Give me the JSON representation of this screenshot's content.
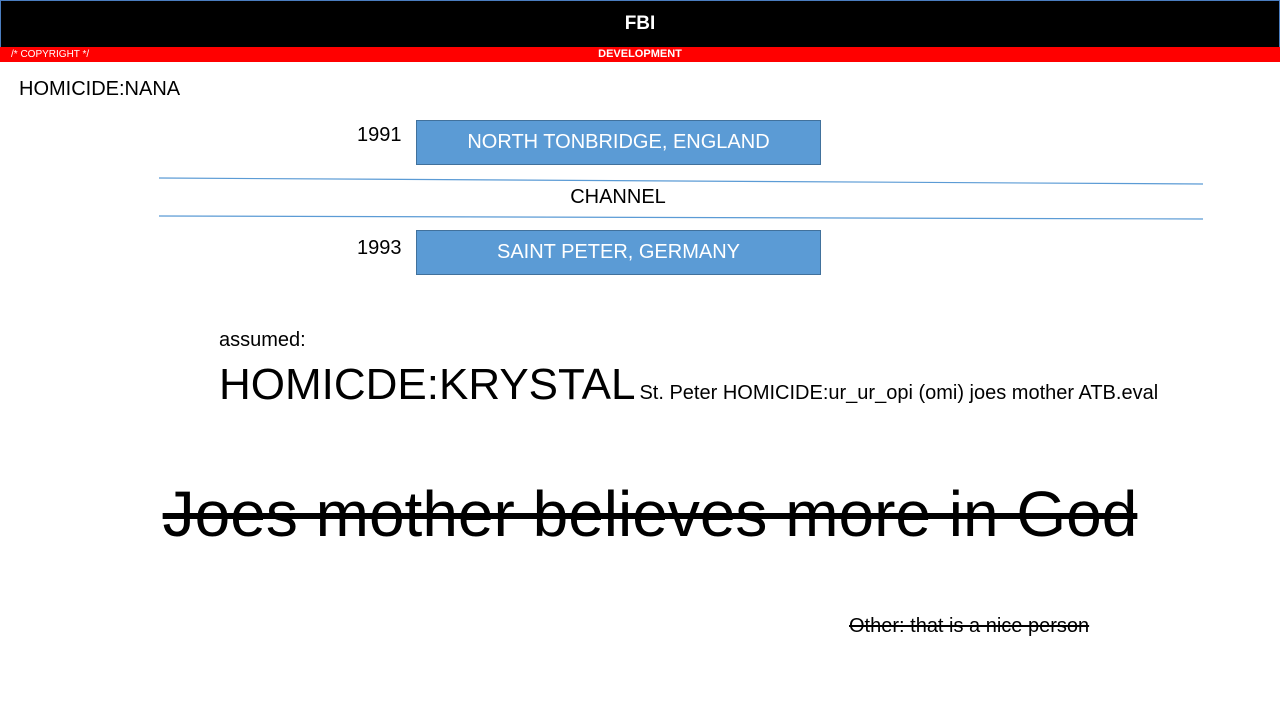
{
  "header": {
    "title": "FBI",
    "copyright": "/* COPYRIGHT */",
    "environment": "DEVELOPMENT",
    "colors": {
      "header_bg": "#000000",
      "env_bar": "#ff0000"
    }
  },
  "case": {
    "title": "HOMICIDE:NANA"
  },
  "timeline": {
    "entries": [
      {
        "year": "1991",
        "location": "NORTH TONBRIDGE, ENGLAND"
      },
      {
        "year": "1993",
        "location": "SAINT PETER, GERMANY"
      }
    ],
    "separator_label": "CHANNEL",
    "box_color": "#5b9bd5"
  },
  "assumption": {
    "label": "assumed:",
    "primary": "HOMICDE:KRYSTAL",
    "detail": "St. Peter HOMICIDE:ur_ur_opi (omi)  joes mother ATB.eval"
  },
  "notes": {
    "struck_headline": "Joes mother believes more in God",
    "struck_small": "Other: that is a nice person"
  }
}
